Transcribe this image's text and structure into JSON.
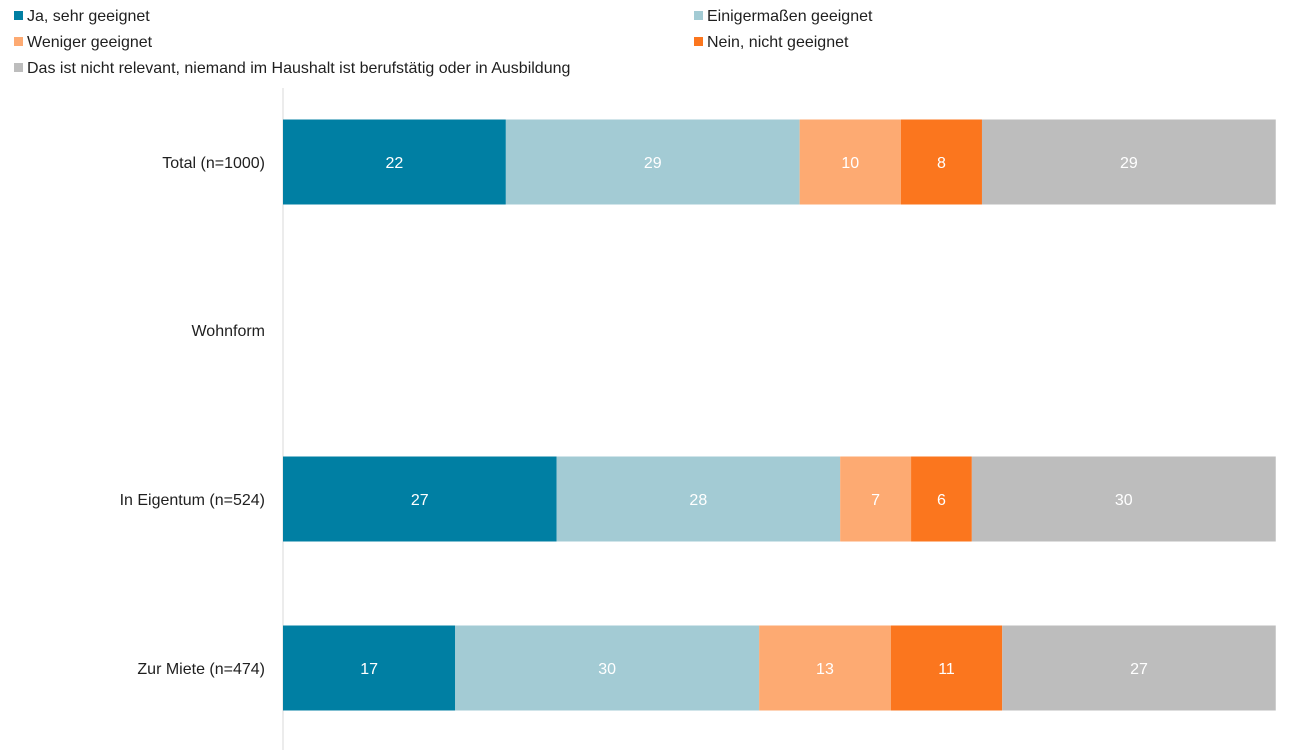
{
  "chart_data": {
    "type": "bar",
    "orientation": "horizontal",
    "stacked": true,
    "normalized_to_100": true,
    "legend_position": "top",
    "grid": false,
    "xlim": [
      0,
      100
    ],
    "title": "",
    "xlabel": "",
    "ylabel": "",
    "categories": [
      "Total (n=1000)",
      "Wohnform",
      "In Eigentum (n=524)",
      "Zur Miete (n=474)"
    ],
    "series": [
      {
        "name": "Ja, sehr geeignet",
        "color": "#007fa3",
        "label_color": "#ffffff",
        "values": [
          22,
          null,
          27,
          17
        ]
      },
      {
        "name": "Einigermaßen geeignet",
        "color": "#a3cbd4",
        "label_color": "#ffffff",
        "values": [
          29,
          null,
          28,
          30
        ]
      },
      {
        "name": "Weniger geeignet",
        "color": "#fdaa72",
        "label_color": "#ffffff",
        "values": [
          10,
          null,
          7,
          13
        ]
      },
      {
        "name": "Nein, nicht geeignet",
        "color": "#fb761e",
        "label_color": "#ffffff",
        "values": [
          8,
          null,
          6,
          11
        ]
      },
      {
        "name": "Das ist nicht relevant, niemand im Haushalt ist berufstätig oder in Ausbildung",
        "color": "#bdbdbd",
        "label_color": "#ffffff",
        "values": [
          29,
          null,
          30,
          27
        ]
      }
    ]
  }
}
